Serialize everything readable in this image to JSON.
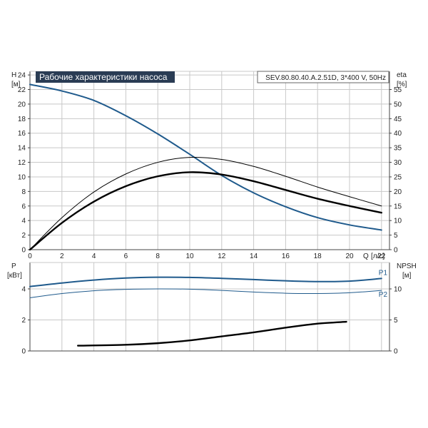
{
  "title": "Рабочие характеристики насоса",
  "model": "SEV.80.80.40.A.2.51D, 3*400 V, 50Hz",
  "colors": {
    "blue": "#1f5a8c",
    "black": "#000000",
    "grid": "#c8c8c8",
    "title_bg": "#2a3c54"
  },
  "chart_data": [
    {
      "type": "line",
      "panel": "upper",
      "x_axis": {
        "label_name": "Q",
        "label_unit": "[л/с]",
        "range": [
          0,
          22.5
        ],
        "ticks": [
          0,
          2,
          4,
          6,
          8,
          10,
          12,
          14,
          16,
          18,
          20,
          22
        ]
      },
      "y_left": {
        "label_name": "H",
        "label_unit": "[м]",
        "range": [
          0,
          24.5
        ],
        "ticks": [
          0,
          2,
          4,
          6,
          8,
          10,
          12,
          14,
          16,
          18,
          20,
          22,
          24
        ]
      },
      "y_right": {
        "label_name": "eta",
        "label_unit": "[%]",
        "range": [
          0,
          61.25
        ],
        "ticks": [
          0,
          5,
          10,
          15,
          20,
          25,
          30,
          35,
          40,
          45,
          50,
          55
        ]
      },
      "grid": true,
      "series": [
        {
          "axis": "left",
          "color": "#1f5a8c",
          "width": 2,
          "points": [
            [
              0,
              22.7
            ],
            [
              2,
              21.8
            ],
            [
              4,
              20.5
            ],
            [
              6,
              18.4
            ],
            [
              8,
              15.9
            ],
            [
              10,
              13.1
            ],
            [
              12,
              10.2
            ],
            [
              14,
              7.8
            ],
            [
              16,
              5.9
            ],
            [
              18,
              4.4
            ],
            [
              20,
              3.4
            ],
            [
              22,
              2.7
            ]
          ]
        },
        {
          "axis": "right",
          "color": "#000000",
          "width": 2.4,
          "points": [
            [
              0,
              0
            ],
            [
              2,
              9.2
            ],
            [
              4,
              16.5
            ],
            [
              6,
              21.8
            ],
            [
              8,
              25.2
            ],
            [
              10,
              26.6
            ],
            [
              12,
              25.8
            ],
            [
              14,
              23.5
            ],
            [
              16,
              20.5
            ],
            [
              18,
              17.5
            ],
            [
              20,
              15.0
            ],
            [
              22,
              12.7
            ]
          ]
        },
        {
          "axis": "right",
          "color": "#000000",
          "width": 1,
          "points": [
            [
              0,
              0
            ],
            [
              2,
              11.0
            ],
            [
              4,
              19.8
            ],
            [
              6,
              26.0
            ],
            [
              8,
              30.0
            ],
            [
              10,
              31.7
            ],
            [
              12,
              31.0
            ],
            [
              14,
              28.6
            ],
            [
              16,
              25.2
            ],
            [
              18,
              21.5
            ],
            [
              20,
              18.2
            ],
            [
              22,
              15.0
            ]
          ]
        }
      ]
    },
    {
      "type": "line",
      "panel": "lower",
      "x_axis": {
        "range": [
          0,
          22.5
        ]
      },
      "y_left": {
        "label_name": "P",
        "label_unit": "[кВт]",
        "range": [
          0,
          5.7
        ],
        "ticks": [
          0,
          2,
          4
        ]
      },
      "y_right": {
        "label_name": "NPSH",
        "label_unit": "[м]",
        "range": [
          0,
          14.25
        ],
        "ticks": [
          0,
          5,
          10
        ]
      },
      "grid": true,
      "series": [
        {
          "name": "P1",
          "axis": "left",
          "color": "#1f5a8c",
          "width": 2,
          "points": [
            [
              0,
              4.15
            ],
            [
              2,
              4.38
            ],
            [
              4,
              4.57
            ],
            [
              6,
              4.7
            ],
            [
              8,
              4.75
            ],
            [
              10,
              4.74
            ],
            [
              12,
              4.68
            ],
            [
              14,
              4.6
            ],
            [
              16,
              4.52
            ],
            [
              18,
              4.47
            ],
            [
              20,
              4.5
            ],
            [
              22,
              4.67
            ]
          ]
        },
        {
          "name": "P2",
          "axis": "left",
          "color": "#1f5a8c",
          "width": 1,
          "points": [
            [
              0,
              3.43
            ],
            [
              2,
              3.7
            ],
            [
              4,
              3.88
            ],
            [
              6,
              3.97
            ],
            [
              8,
              4.0
            ],
            [
              10,
              3.98
            ],
            [
              12,
              3.9
            ],
            [
              14,
              3.8
            ],
            [
              16,
              3.72
            ],
            [
              18,
              3.7
            ],
            [
              20,
              3.75
            ],
            [
              22,
              3.9
            ]
          ]
        },
        {
          "axis": "right",
          "color": "#000000",
          "width": 2.4,
          "points": [
            [
              3,
              0.85
            ],
            [
              6,
              1.0
            ],
            [
              8,
              1.25
            ],
            [
              10,
              1.7
            ],
            [
              12,
              2.35
            ],
            [
              14,
              3.0
            ],
            [
              16,
              3.75
            ],
            [
              18,
              4.4
            ],
            [
              19.8,
              4.7
            ]
          ]
        }
      ]
    }
  ]
}
